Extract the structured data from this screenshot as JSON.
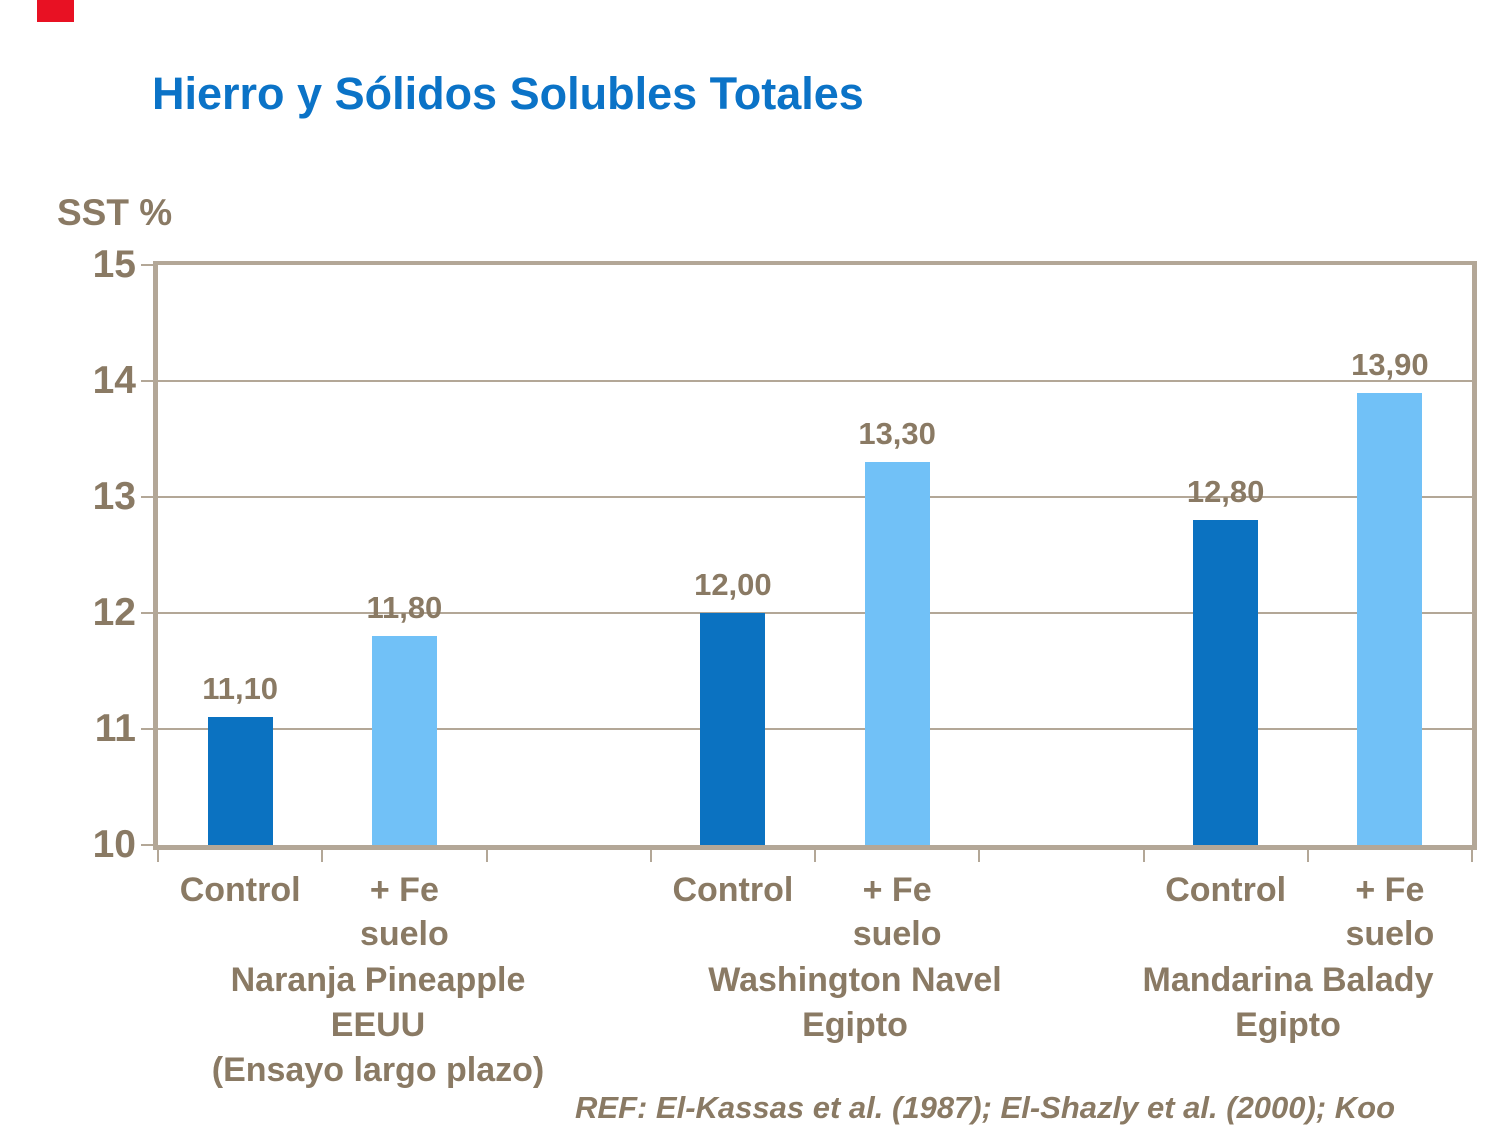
{
  "slide": {
    "title": "Hierro y Sólidos Solubles Totales",
    "title_color": "#0b73c7",
    "corner_mark_color": "#e81123",
    "background_color": "#ffffff",
    "ref_text": "REF: El-Kassas et al. (1987); El-Shazly et al. (2000); Koo"
  },
  "chart_data": {
    "type": "bar",
    "axis_label": "SST %",
    "ylabel": "SST %",
    "ylim": [
      10,
      15
    ],
    "y_ticks": [
      15,
      14,
      13,
      12,
      11,
      10
    ],
    "grid": true,
    "legend": "none",
    "decimal_style": "comma",
    "text_color": "#8a7a64",
    "line_color": "#b3a797",
    "series_colors": {
      "control": "#0b72c1",
      "fe_suelo": "#71c1f7"
    },
    "series_names": {
      "control": "Control",
      "fe_suelo": "+ Fe suelo"
    },
    "groups": [
      {
        "name_lines": [
          "Naranja Pineapple",
          "EEUU",
          "(Ensayo largo plazo)"
        ],
        "bars": [
          {
            "label_lines": [
              "Control"
            ],
            "series": "control",
            "value": 11.1,
            "value_label": "11,10"
          },
          {
            "label_lines": [
              "+ Fe",
              "suelo"
            ],
            "series": "fe_suelo",
            "value": 11.8,
            "value_label": "11,80"
          }
        ]
      },
      {
        "name_lines": [
          "Washington Navel",
          "Egipto"
        ],
        "bars": [
          {
            "label_lines": [
              "Control"
            ],
            "series": "control",
            "value": 12.0,
            "value_label": "12,00"
          },
          {
            "label_lines": [
              "+ Fe",
              "suelo"
            ],
            "series": "fe_suelo",
            "value": 13.3,
            "value_label": "13,30"
          }
        ]
      },
      {
        "name_lines": [
          "Mandarina Balady",
          "Egipto"
        ],
        "bars": [
          {
            "label_lines": [
              "Control"
            ],
            "series": "control",
            "value": 12.8,
            "value_label": "12,80"
          },
          {
            "label_lines": [
              "+ Fe",
              "suelo"
            ],
            "series": "fe_suelo",
            "value": 13.9,
            "value_label": "13,90"
          }
        ]
      }
    ]
  }
}
